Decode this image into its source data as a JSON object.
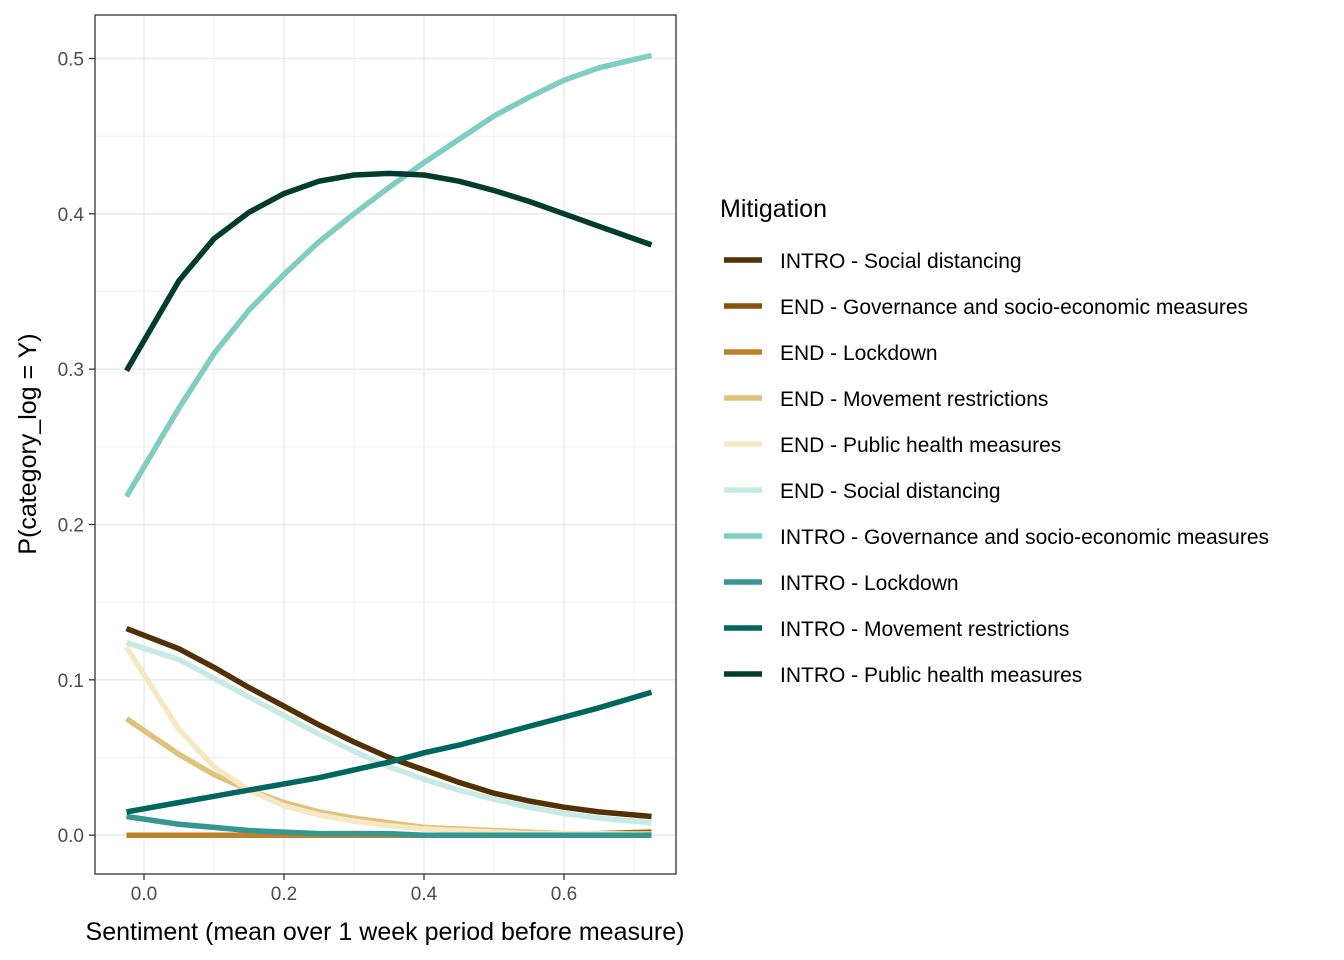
{
  "chart_data": {
    "type": "line",
    "title": "",
    "xlabel": "Sentiment (mean over 1 week period before measure)",
    "ylabel": "P(category_log = Y)",
    "xlim": [
      -0.07,
      0.76
    ],
    "ylim": [
      -0.025,
      0.528
    ],
    "x_ticks": [
      0.0,
      0.2,
      0.4,
      0.6
    ],
    "x_tick_labels": [
      "0.0",
      "0.2",
      "0.4",
      "0.6"
    ],
    "y_ticks": [
      0.0,
      0.1,
      0.2,
      0.3,
      0.4,
      0.5
    ],
    "y_tick_labels": [
      "0.0",
      "0.1",
      "0.2",
      "0.3",
      "0.4",
      "0.5"
    ],
    "grid": true,
    "legend": {
      "title": "Mitigation",
      "position": "right"
    },
    "x": [
      -0.025,
      0.05,
      0.1,
      0.15,
      0.2,
      0.25,
      0.3,
      0.35,
      0.4,
      0.45,
      0.5,
      0.55,
      0.6,
      0.65,
      0.725
    ],
    "series": [
      {
        "name": "INTRO - Social distancing",
        "color": "#543005",
        "values": [
          0.133,
          0.12,
          0.108,
          0.095,
          0.083,
          0.071,
          0.06,
          0.05,
          0.042,
          0.034,
          0.027,
          0.022,
          0.018,
          0.015,
          0.012
        ]
      },
      {
        "name": "END - Governance and socio-economic measures",
        "color": "#8C510A",
        "values": [
          0.0,
          0.0,
          0.0,
          0.0,
          0.0,
          0.0,
          0.0,
          0.0,
          0.0,
          0.0,
          0.0,
          0.0,
          0.0,
          0.001,
          0.002
        ]
      },
      {
        "name": "END - Lockdown",
        "color": "#BF812D",
        "values": [
          0.0,
          0.0,
          0.0,
          0.0,
          0.0,
          0.0,
          0.0,
          0.0,
          0.0,
          0.0,
          0.0,
          0.0,
          0.0,
          0.0,
          0.001
        ]
      },
      {
        "name": "END - Movement restrictions",
        "color": "#DFC27D",
        "values": [
          0.075,
          0.052,
          0.039,
          0.029,
          0.021,
          0.015,
          0.011,
          0.008,
          0.005,
          0.004,
          0.003,
          0.002,
          0.001,
          0.001,
          0.001
        ]
      },
      {
        "name": "END - Public health measures",
        "color": "#F6E8C3",
        "values": [
          0.121,
          0.068,
          0.044,
          0.029,
          0.019,
          0.013,
          0.009,
          0.006,
          0.004,
          0.003,
          0.002,
          0.001,
          0.001,
          0.001,
          0.0
        ]
      },
      {
        "name": "END - Social distancing",
        "color": "#C7EAE5",
        "values": [
          0.124,
          0.113,
          0.101,
          0.089,
          0.077,
          0.065,
          0.054,
          0.044,
          0.036,
          0.029,
          0.023,
          0.018,
          0.014,
          0.011,
          0.008
        ]
      },
      {
        "name": "INTRO - Governance and socio-economic measures",
        "color": "#80CDC1",
        "values": [
          0.218,
          0.275,
          0.31,
          0.338,
          0.361,
          0.382,
          0.4,
          0.417,
          0.433,
          0.448,
          0.463,
          0.475,
          0.486,
          0.494,
          0.502
        ]
      },
      {
        "name": "INTRO - Lockdown",
        "color": "#35978F",
        "values": [
          0.012,
          0.007,
          0.005,
          0.003,
          0.002,
          0.001,
          0.001,
          0.001,
          0.0,
          0.0,
          0.0,
          0.0,
          0.0,
          0.0,
          0.0
        ]
      },
      {
        "name": "INTRO - Movement restrictions",
        "color": "#01665E",
        "values": [
          0.015,
          0.021,
          0.025,
          0.029,
          0.033,
          0.037,
          0.042,
          0.047,
          0.053,
          0.058,
          0.064,
          0.07,
          0.076,
          0.082,
          0.092
        ]
      },
      {
        "name": "INTRO - Public health measures",
        "color": "#003C30",
        "values": [
          0.299,
          0.357,
          0.384,
          0.401,
          0.413,
          0.421,
          0.425,
          0.426,
          0.425,
          0.421,
          0.415,
          0.408,
          0.4,
          0.392,
          0.38
        ]
      }
    ]
  }
}
